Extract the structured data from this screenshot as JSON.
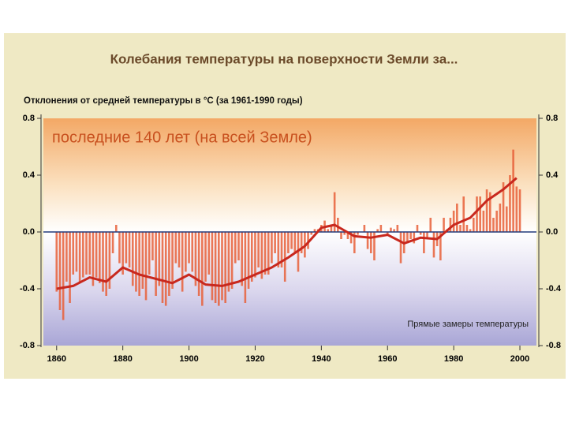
{
  "chart_data": {
    "type": "bar",
    "title": "Колебания температуры на поверхности Земли за...",
    "subtitle": "Отклонения от средней температуры в °C (за 1961-1990 годы)",
    "heading": "последние 140 лет (на всей Земле)",
    "annotation": "Прямые замеры температуры",
    "color": "#e8603a",
    "x": [
      1860,
      1861,
      1862,
      1863,
      1864,
      1865,
      1866,
      1867,
      1868,
      1869,
      1870,
      1871,
      1872,
      1873,
      1874,
      1875,
      1876,
      1877,
      1878,
      1879,
      1880,
      1881,
      1882,
      1883,
      1884,
      1885,
      1886,
      1887,
      1888,
      1889,
      1890,
      1891,
      1892,
      1893,
      1894,
      1895,
      1896,
      1897,
      1898,
      1899,
      1900,
      1901,
      1902,
      1903,
      1904,
      1905,
      1906,
      1907,
      1908,
      1909,
      1910,
      1911,
      1912,
      1913,
      1914,
      1915,
      1916,
      1917,
      1918,
      1919,
      1920,
      1921,
      1922,
      1923,
      1924,
      1925,
      1926,
      1927,
      1928,
      1929,
      1930,
      1931,
      1932,
      1933,
      1934,
      1935,
      1936,
      1937,
      1938,
      1939,
      1940,
      1941,
      1942,
      1943,
      1944,
      1945,
      1946,
      1947,
      1948,
      1949,
      1950,
      1951,
      1952,
      1953,
      1954,
      1955,
      1956,
      1957,
      1958,
      1959,
      1960,
      1961,
      1962,
      1963,
      1964,
      1965,
      1966,
      1967,
      1968,
      1969,
      1970,
      1971,
      1972,
      1973,
      1974,
      1975,
      1976,
      1977,
      1978,
      1979,
      1980,
      1981,
      1982,
      1983,
      1984,
      1985,
      1986,
      1987,
      1988,
      1989,
      1990,
      1991,
      1992,
      1993,
      1994,
      1995,
      1996,
      1997,
      1998,
      1999,
      2000
    ],
    "values": [
      -0.42,
      -0.55,
      -0.62,
      -0.35,
      -0.5,
      -0.3,
      -0.28,
      -0.36,
      -0.32,
      -0.3,
      -0.3,
      -0.38,
      -0.32,
      -0.36,
      -0.42,
      -0.45,
      -0.4,
      -0.15,
      0.05,
      -0.22,
      -0.3,
      -0.22,
      -0.25,
      -0.38,
      -0.42,
      -0.45,
      -0.4,
      -0.48,
      -0.3,
      -0.2,
      -0.45,
      -0.38,
      -0.5,
      -0.52,
      -0.45,
      -0.4,
      -0.22,
      -0.25,
      -0.42,
      -0.28,
      -0.22,
      -0.28,
      -0.38,
      -0.45,
      -0.52,
      -0.35,
      -0.3,
      -0.48,
      -0.5,
      -0.52,
      -0.48,
      -0.5,
      -0.42,
      -0.4,
      -0.22,
      -0.2,
      -0.38,
      -0.5,
      -0.4,
      -0.35,
      -0.32,
      -0.25,
      -0.33,
      -0.3,
      -0.3,
      -0.22,
      -0.15,
      -0.25,
      -0.25,
      -0.35,
      -0.15,
      -0.12,
      -0.15,
      -0.28,
      -0.15,
      -0.18,
      -0.12,
      -0.02,
      0.02,
      0.02,
      0.05,
      0.08,
      0.02,
      0.05,
      0.28,
      0.1,
      -0.05,
      -0.02,
      -0.05,
      -0.08,
      -0.15,
      -0.02,
      0.0,
      0.05,
      -0.12,
      -0.15,
      -0.2,
      0.02,
      0.05,
      0.0,
      -0.02,
      0.03,
      0.02,
      0.05,
      -0.22,
      -0.15,
      -0.08,
      -0.05,
      -0.08,
      0.05,
      -0.02,
      -0.15,
      -0.05,
      0.1,
      -0.18,
      -0.1,
      -0.2,
      0.1,
      0.02,
      0.1,
      0.15,
      0.2,
      0.05,
      0.25,
      0.05,
      0.02,
      0.1,
      0.25,
      0.25,
      0.15,
      0.3,
      0.28,
      0.1,
      0.15,
      0.2,
      0.35,
      0.18,
      0.4,
      0.58,
      0.32,
      0.3
    ],
    "smooth": {
      "color": "#c8281e",
      "x": [
        1860,
        1865,
        1870,
        1875,
        1880,
        1885,
        1890,
        1895,
        1900,
        1905,
        1910,
        1915,
        1920,
        1925,
        1930,
        1935,
        1940,
        1944,
        1950,
        1955,
        1960,
        1965,
        1970,
        1975,
        1980,
        1985,
        1990,
        1995,
        1999
      ],
      "values": [
        -0.4,
        -0.38,
        -0.32,
        -0.35,
        -0.25,
        -0.3,
        -0.33,
        -0.36,
        -0.3,
        -0.37,
        -0.38,
        -0.35,
        -0.3,
        -0.25,
        -0.18,
        -0.1,
        0.03,
        0.05,
        -0.03,
        -0.04,
        -0.02,
        -0.08,
        -0.04,
        -0.05,
        0.05,
        0.1,
        0.22,
        0.3,
        0.38
      ]
    },
    "xlim": [
      1856,
      2005
    ],
    "xticks": [
      1860,
      1880,
      1900,
      1920,
      1940,
      1960,
      1980,
      2000
    ],
    "ylim": [
      -0.8,
      0.8
    ],
    "yticks": [
      0.8,
      0.4,
      {
        "value": 0,
        "label": "0.0"
      },
      -0.4,
      -0.8
    ],
    "y2lim": [
      -0.8,
      0.8
    ],
    "y2ticks": [
      0.8,
      0.4,
      {
        "value": 0,
        "label": "0.0"
      },
      -0.4,
      -0.8
    ]
  }
}
